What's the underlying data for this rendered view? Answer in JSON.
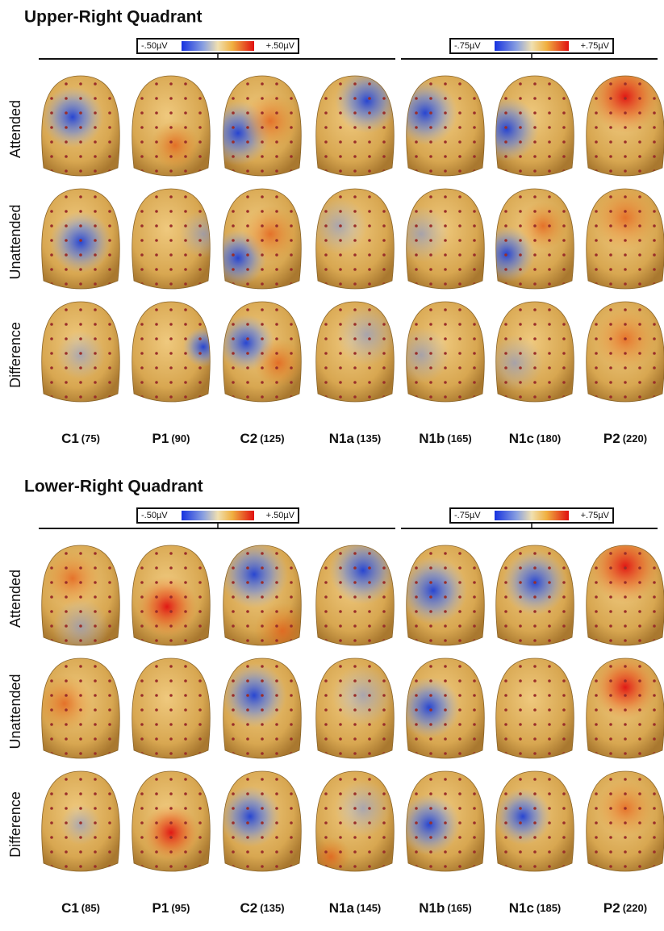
{
  "panels": [
    {
      "title": "Upper-Right Quadrant",
      "scales": [
        {
          "min": "-.50µV",
          "max": "+.50µV"
        },
        {
          "min": "-.75µV",
          "max": "+.75µV"
        }
      ],
      "rows": [
        "Attended",
        "Unattended",
        "Difference"
      ],
      "columns": [
        {
          "name": "C1",
          "latency": "(75)"
        },
        {
          "name": "P1",
          "latency": "(90)"
        },
        {
          "name": "C2",
          "latency": "(125)"
        },
        {
          "name": "N1a",
          "latency": "(135)"
        },
        {
          "name": "N1b",
          "latency": "(165)"
        },
        {
          "name": "N1c",
          "latency": "(180)"
        },
        {
          "name": "P2",
          "latency": "(220)"
        }
      ]
    },
    {
      "title": "Lower-Right Quadrant",
      "scales": [
        {
          "min": "-.50µV",
          "max": "+.50µV"
        },
        {
          "min": "-.75µV",
          "max": "+.75µV"
        }
      ],
      "rows": [
        "Attended",
        "Unattended",
        "Difference"
      ],
      "columns": [
        {
          "name": "C1",
          "latency": "(85)"
        },
        {
          "name": "P1",
          "latency": "(95)"
        },
        {
          "name": "C2",
          "latency": "(135)"
        },
        {
          "name": "N1a",
          "latency": "(145)"
        },
        {
          "name": "N1b",
          "latency": "(165)"
        },
        {
          "name": "N1c",
          "latency": "(185)"
        },
        {
          "name": "P2",
          "latency": "(220)"
        }
      ]
    }
  ]
}
